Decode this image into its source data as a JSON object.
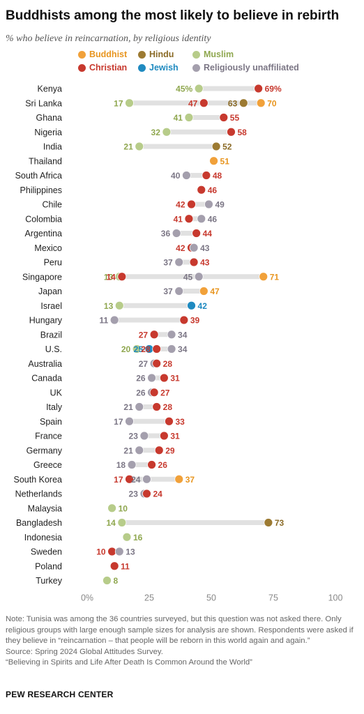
{
  "header": {
    "title": "Buddhists among the most likely to believe in rebirth",
    "subtitle": "% who believe in reincarnation, by religious identity"
  },
  "legend": [
    {
      "key": "buddhist",
      "label": "Buddhist",
      "color": "#f1a13a"
    },
    {
      "key": "hindu",
      "label": "Hindu",
      "color": "#9c7a32"
    },
    {
      "key": "muslim",
      "label": "Muslim",
      "color": "#b7cc8a"
    },
    {
      "key": "christian",
      "label": "Christian",
      "color": "#c7392e"
    },
    {
      "key": "jewish",
      "label": "Jewish",
      "color": "#1f8ac0"
    },
    {
      "key": "unaffiliated",
      "label": "Religiously unaffiliated",
      "color": "#a49fad"
    }
  ],
  "chart_data": {
    "type": "scatter",
    "xlim": [
      0,
      100
    ],
    "x_ticks": [
      0,
      25,
      50,
      75,
      100
    ],
    "x_tick_labels": [
      "0%",
      "25",
      "50",
      "75",
      "100"
    ],
    "label_colors": {
      "buddhist": "#e8951f",
      "hindu": "#8a6a26",
      "muslim": "#8fa74f",
      "christian": "#c7392e",
      "jewish": "#1f8ac0",
      "unaffiliated": "#7b7685"
    },
    "rows": [
      {
        "country": "Kenya",
        "muslim": 45,
        "christian": 69,
        "pct": true
      },
      {
        "country": "Sri Lanka",
        "muslim": 17,
        "christian": 47,
        "hindu": 63,
        "buddhist": 70
      },
      {
        "country": "Ghana",
        "muslim": 41,
        "christian": 55
      },
      {
        "country": "Nigeria",
        "muslim": 32,
        "christian": 58
      },
      {
        "country": "India",
        "muslim": 21,
        "hindu": 52
      },
      {
        "country": "Thailand",
        "buddhist": 51
      },
      {
        "country": "South Africa",
        "unaffiliated": 40,
        "christian": 48
      },
      {
        "country": "Philippines",
        "christian": 46
      },
      {
        "country": "Chile",
        "christian": 42,
        "unaffiliated": 49
      },
      {
        "country": "Colombia",
        "christian": 41,
        "unaffiliated": 46
      },
      {
        "country": "Argentina",
        "unaffiliated": 36,
        "christian": 44
      },
      {
        "country": "Mexico",
        "christian": 42,
        "unaffiliated": 43
      },
      {
        "country": "Peru",
        "unaffiliated": 37,
        "christian": 43
      },
      {
        "country": "Singapore",
        "muslim": 13,
        "christian": 14,
        "unaffiliated": 45,
        "buddhist": 71
      },
      {
        "country": "Japan",
        "unaffiliated": 37,
        "buddhist": 47
      },
      {
        "country": "Israel",
        "muslim": 13,
        "jewish": 42
      },
      {
        "country": "Hungary",
        "unaffiliated": 11,
        "christian": 39
      },
      {
        "country": "Brazil",
        "christian": 27,
        "unaffiliated": 34
      },
      {
        "country": "U.S.",
        "muslim": 20,
        "jewish": 25,
        "christian": 28,
        "unaffiliated": 34
      },
      {
        "country": "Australia",
        "unaffiliated": 27,
        "christian": 28
      },
      {
        "country": "Canada",
        "unaffiliated": 26,
        "christian": 31
      },
      {
        "country": "UK",
        "unaffiliated": 26,
        "christian": 27
      },
      {
        "country": "Italy",
        "unaffiliated": 21,
        "christian": 28
      },
      {
        "country": "Spain",
        "unaffiliated": 17,
        "christian": 33
      },
      {
        "country": "France",
        "unaffiliated": 23,
        "christian": 31
      },
      {
        "country": "Germany",
        "unaffiliated": 21,
        "christian": 29
      },
      {
        "country": "Greece",
        "unaffiliated": 18,
        "christian": 26
      },
      {
        "country": "South Korea",
        "christian": 17,
        "unaffiliated": 24,
        "buddhist": 37
      },
      {
        "country": "Netherlands",
        "unaffiliated": 23,
        "christian": 24
      },
      {
        "country": "Malaysia",
        "muslim": 10
      },
      {
        "country": "Bangladesh",
        "muslim": 14,
        "hindu": 73
      },
      {
        "country": "Indonesia",
        "muslim": 16
      },
      {
        "country": "Sweden",
        "christian": 10,
        "unaffiliated": 13
      },
      {
        "country": "Poland",
        "christian": 11
      },
      {
        "country": "Turkey",
        "muslim": 8
      }
    ]
  },
  "notes": {
    "note": "Note: Tunisia was among the 36 countries surveyed, but this question was not asked there. Only religious groups with large enough sample sizes for analysis are shown. Respondents were asked if they believe in “reincarnation – that people will be reborn in this world again and again.”",
    "source": "Source: Spring 2024 Global Attitudes Survey.",
    "report": "“Believing in Spirits and Life After Death Is Common Around the World”"
  },
  "footer": {
    "brand": "PEW RESEARCH CENTER"
  }
}
